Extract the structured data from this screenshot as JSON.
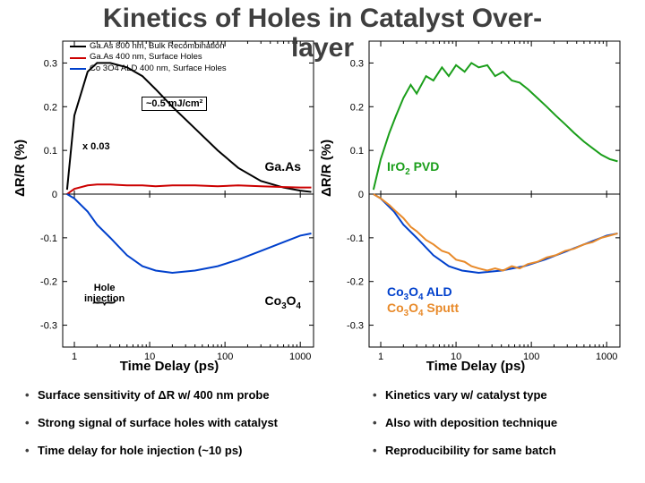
{
  "title_line1": "Kinetics of Holes in Catalyst Over-",
  "title_line2": "layer",
  "title_color": "#3f3f3f",
  "axes": {
    "xlabel": "Time Delay (ps)",
    "ylabel": "ΔR/R (%)",
    "x_log": true,
    "x_ticks": [
      1,
      10,
      100,
      1000
    ],
    "x_tick_labels": [
      "1",
      "10",
      "100",
      "1000"
    ],
    "y_ticks": [
      -0.3,
      -0.2,
      -0.1,
      0,
      0.1,
      0.2,
      0.3
    ],
    "y_tick_labels": [
      "-0.3",
      "-0.2",
      "-0.1",
      "0",
      "0.1",
      "0.2",
      "0.3"
    ],
    "xlim": [
      0.7,
      1500
    ],
    "ylim": [
      -0.35,
      0.35
    ],
    "tick_fontsize": 11,
    "label_fontsize": 15
  },
  "left_panel": {
    "legend": [
      {
        "label": "Ga.As 800 nm, Bulk Recombination",
        "color": "#000000"
      },
      {
        "label": "Ga.As 400 nm, Surface Holes",
        "color": "#cc0000"
      },
      {
        "label": "Co 3O4 ALD 400 nm, Surface Holes",
        "color": "#0040cc"
      }
    ],
    "fluence_note": "~0.5 mJ/cm²",
    "scale_note": "x 0.03",
    "top_annot": "Ga.As",
    "bottom_annot_html": "Co<sub>3</sub>O<sub>4</sub>",
    "hole_label_line1": "Hole",
    "hole_label_line2": "injection",
    "series": {
      "black": {
        "color": "#000000",
        "x": [
          0.8,
          1,
          1.5,
          2,
          3,
          5,
          8,
          12,
          20,
          40,
          80,
          150,
          300,
          600,
          1000,
          1400
        ],
        "y": [
          0.01,
          0.18,
          0.28,
          0.3,
          0.3,
          0.29,
          0.27,
          0.24,
          0.2,
          0.15,
          0.1,
          0.06,
          0.03,
          0.015,
          0.008,
          0.005
        ]
      },
      "red": {
        "color": "#cc0000",
        "x": [
          0.8,
          1,
          1.5,
          2,
          3,
          5,
          8,
          12,
          20,
          40,
          80,
          150,
          300,
          600,
          1000,
          1400
        ],
        "y": [
          0.0,
          0.012,
          0.02,
          0.022,
          0.022,
          0.02,
          0.02,
          0.018,
          0.02,
          0.02,
          0.018,
          0.02,
          0.018,
          0.016,
          0.015,
          0.015
        ]
      },
      "blue": {
        "color": "#0040cc",
        "x": [
          0.8,
          1,
          1.5,
          2,
          3,
          5,
          8,
          12,
          20,
          40,
          80,
          150,
          300,
          600,
          1000,
          1400
        ],
        "y": [
          0.0,
          -0.01,
          -0.04,
          -0.07,
          -0.1,
          -0.14,
          -0.165,
          -0.175,
          -0.18,
          -0.175,
          -0.165,
          -0.15,
          -0.13,
          -0.11,
          -0.095,
          -0.09
        ]
      }
    }
  },
  "right_panel": {
    "top_annot_html": "IrO<sub>2</sub> PVD",
    "bottom_annot1_html": "Co<sub>3</sub>O<sub>4</sub> ALD",
    "bottom_annot2_html": "Co<sub>3</sub>O<sub>4</sub> Sputt",
    "series": {
      "green": {
        "color": "#1a9e1a",
        "x": [
          0.8,
          1,
          1.3,
          1.6,
          2,
          2.5,
          3,
          4,
          5,
          6.5,
          8,
          10,
          13,
          16,
          20,
          26,
          33,
          42,
          55,
          70,
          90,
          120,
          160,
          210,
          280,
          370,
          500,
          650,
          850,
          1100,
          1400
        ],
        "y": [
          0.01,
          0.08,
          0.14,
          0.18,
          0.22,
          0.25,
          0.23,
          0.27,
          0.26,
          0.29,
          0.27,
          0.295,
          0.28,
          0.3,
          0.29,
          0.295,
          0.27,
          0.28,
          0.26,
          0.255,
          0.24,
          0.22,
          0.2,
          0.18,
          0.16,
          0.14,
          0.12,
          0.105,
          0.09,
          0.08,
          0.075
        ]
      },
      "blue": {
        "color": "#0040cc",
        "x": [
          0.8,
          1,
          1.5,
          2,
          3,
          5,
          8,
          12,
          20,
          40,
          80,
          150,
          300,
          600,
          1000,
          1400
        ],
        "y": [
          0.0,
          -0.01,
          -0.04,
          -0.07,
          -0.1,
          -0.14,
          -0.165,
          -0.175,
          -0.18,
          -0.175,
          -0.165,
          -0.15,
          -0.13,
          -0.11,
          -0.095,
          -0.09
        ]
      },
      "orange": {
        "color": "#e88a2a",
        "x": [
          0.8,
          1,
          1.3,
          1.6,
          2,
          2.5,
          3,
          4,
          5,
          6.5,
          8,
          10,
          13,
          16,
          20,
          26,
          33,
          42,
          55,
          70,
          90,
          120,
          160,
          210,
          280,
          370,
          500,
          650,
          850,
          1100,
          1400
        ],
        "y": [
          0.0,
          -0.01,
          -0.025,
          -0.04,
          -0.055,
          -0.075,
          -0.085,
          -0.105,
          -0.115,
          -0.13,
          -0.135,
          -0.15,
          -0.155,
          -0.165,
          -0.17,
          -0.175,
          -0.17,
          -0.175,
          -0.165,
          -0.17,
          -0.16,
          -0.155,
          -0.145,
          -0.14,
          -0.13,
          -0.125,
          -0.115,
          -0.11,
          -0.1,
          -0.095,
          -0.09
        ]
      }
    }
  },
  "bullets_left": [
    "Surface sensitivity of ΔR w/ 400 nm probe",
    "Strong signal of surface holes with catalyst",
    "Time delay for hole injection (~10 ps)"
  ],
  "bullets_right": [
    "Kinetics vary w/ catalyst type",
    "Also with deposition technique",
    "Reproducibility for same batch"
  ],
  "chart_style": {
    "plot_bg": "#ffffff",
    "axis_color": "#000000",
    "line_width": 2
  }
}
